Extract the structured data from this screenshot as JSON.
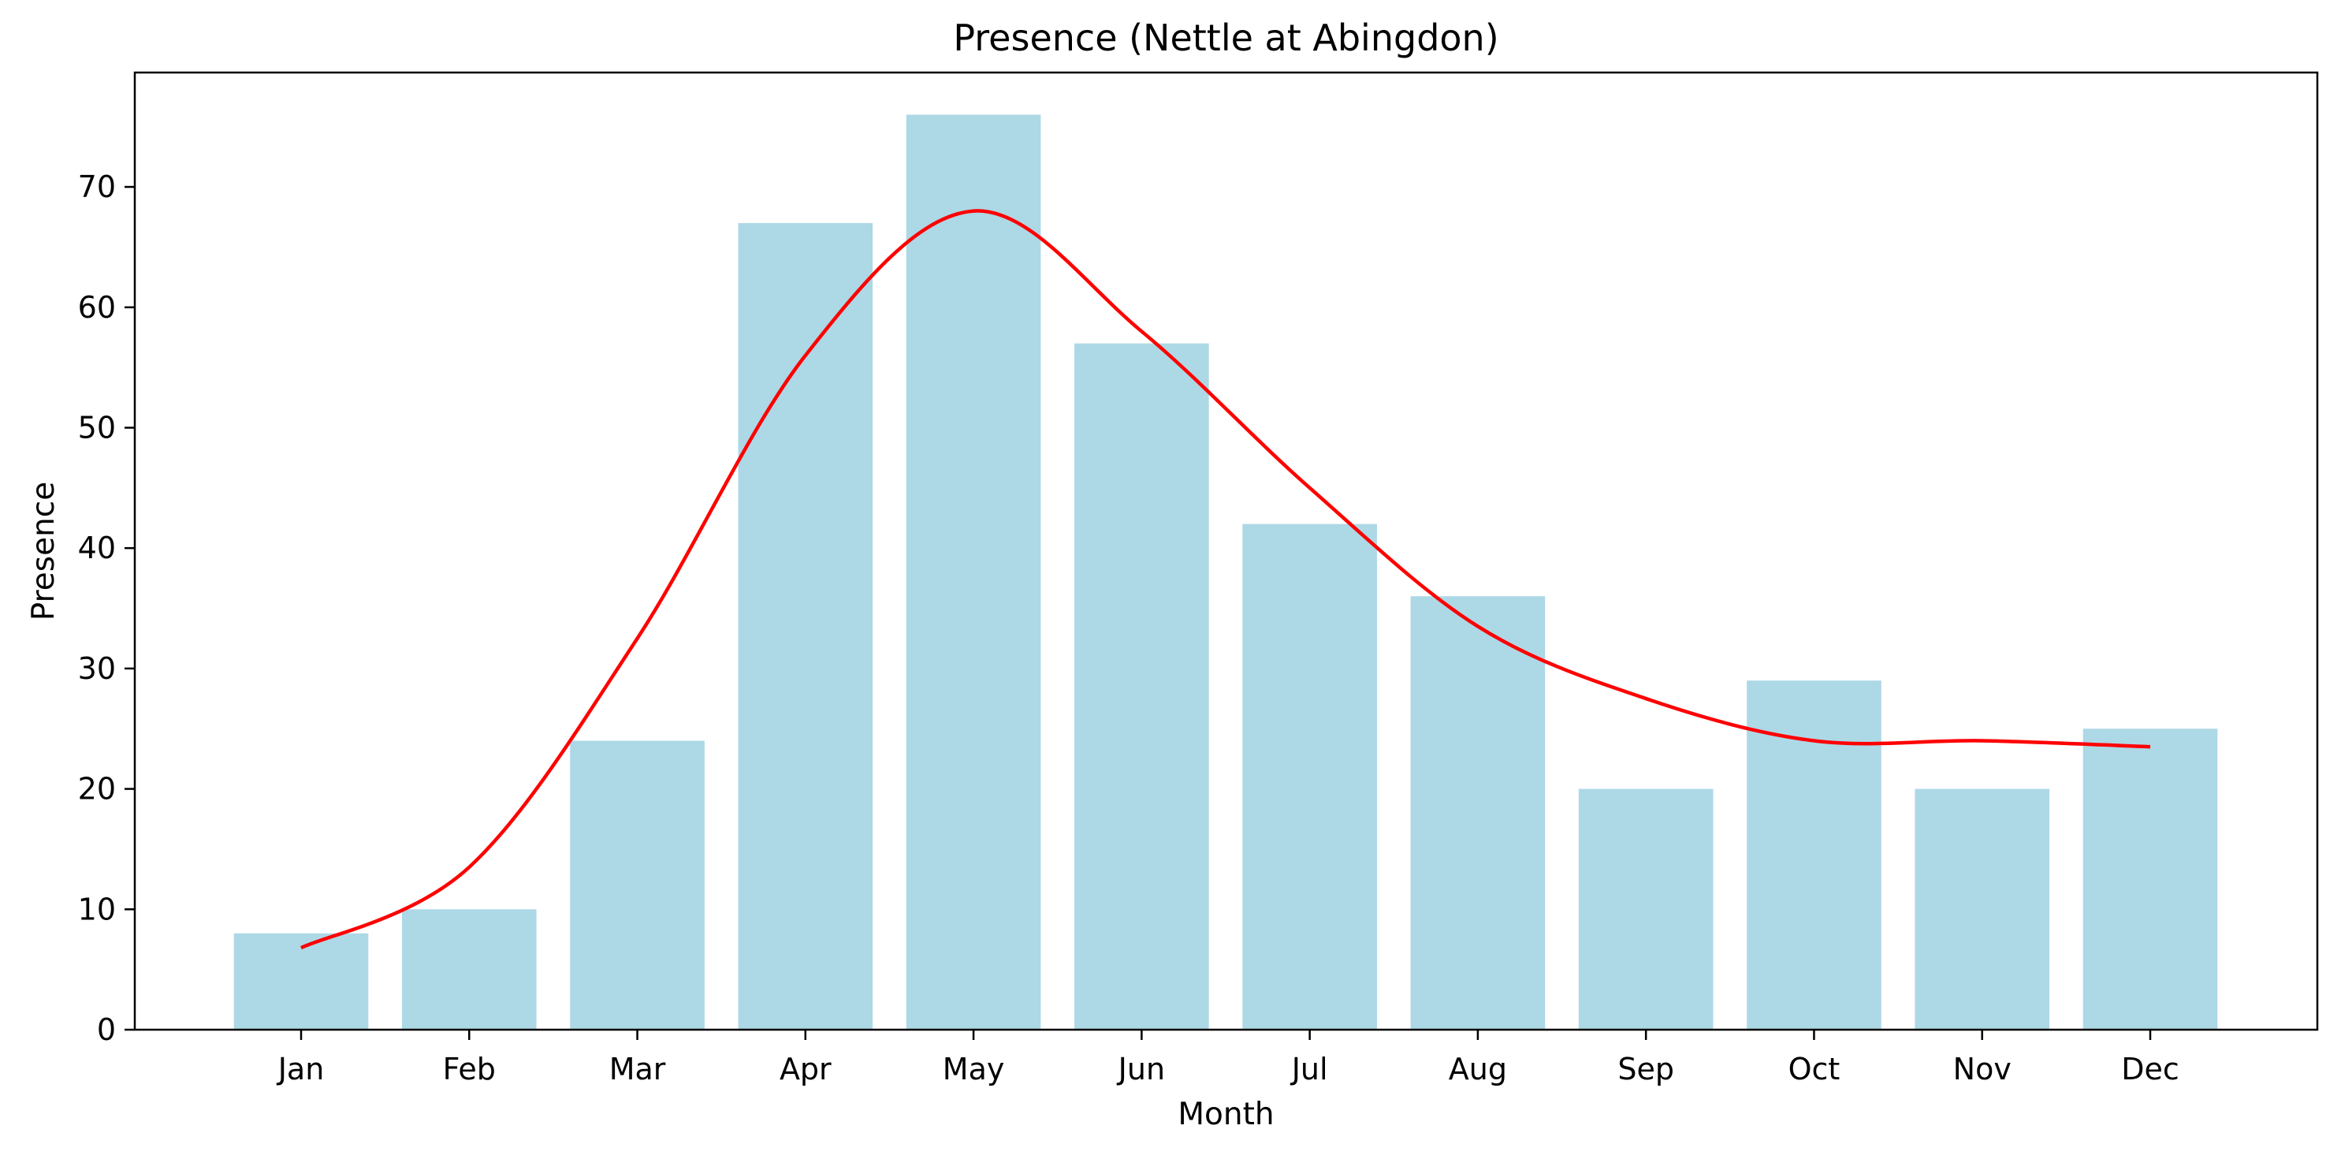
{
  "chart_data": {
    "type": "bar",
    "title": "Presence (Nettle at Abingdon)",
    "xlabel": "Month",
    "ylabel": "Presence",
    "categories": [
      "Jan",
      "Feb",
      "Mar",
      "Apr",
      "May",
      "Jun",
      "Jul",
      "Aug",
      "Sep",
      "Oct",
      "Nov",
      "Dec"
    ],
    "series": [
      {
        "type": "bar",
        "values": [
          8,
          10,
          24,
          67,
          76,
          57,
          42,
          36,
          20,
          29,
          20,
          25
        ],
        "color": "#add8e6"
      },
      {
        "type": "line",
        "smooth": true,
        "values": [
          6.8,
          13.5,
          32.5,
          56,
          68,
          58,
          45,
          33.5,
          27.5,
          24,
          24,
          23.5
        ],
        "color": "#ff0000"
      }
    ],
    "ylim": [
      0,
      79.5
    ],
    "yticks": [
      0,
      10,
      20,
      30,
      40,
      50,
      60,
      70
    ],
    "grid": false,
    "legend": "none"
  }
}
